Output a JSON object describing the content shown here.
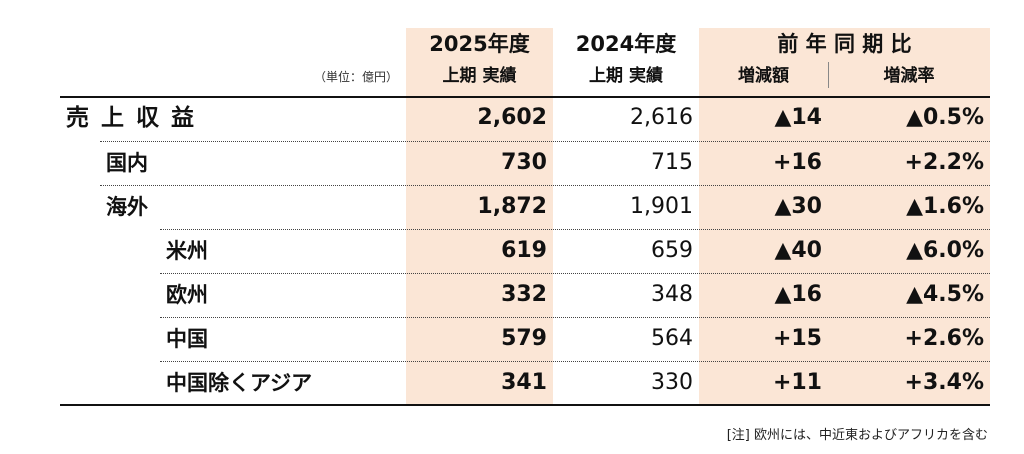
{
  "colors": {
    "highlight": "#fbe6d6",
    "text": "#111111",
    "rule": "#111111"
  },
  "header": {
    "unit": "（単位：億円）",
    "col_2025_year": "2025年度",
    "col_2025_sub": "上期 実績",
    "col_2024_year": "2024年度",
    "col_2024_sub": "上期 実績",
    "yoy_title": "前 年 同 期 比",
    "yoy_diff": "増減額",
    "yoy_rate": "増減率"
  },
  "rows": [
    {
      "label": "売 上 収 益",
      "v2025": "2,602",
      "v2024": "2,616",
      "diff": "▲14",
      "rate": "▲0.5%"
    },
    {
      "label": "国内",
      "v2025": "730",
      "v2024": "715",
      "diff": "+16",
      "rate": "+2.2%"
    },
    {
      "label": "海外",
      "v2025": "1,872",
      "v2024": "1,901",
      "diff": "▲30",
      "rate": "▲1.6%"
    },
    {
      "label": "米州",
      "v2025": "619",
      "v2024": "659",
      "diff": "▲40",
      "rate": "▲6.0%"
    },
    {
      "label": "欧州",
      "v2025": "332",
      "v2024": "348",
      "diff": "▲16",
      "rate": "▲4.5%"
    },
    {
      "label": "中国",
      "v2025": "579",
      "v2024": "564",
      "diff": "+15",
      "rate": "+2.6%"
    },
    {
      "label": "中国除くアジア",
      "v2025": "341",
      "v2024": "330",
      "diff": "+11",
      "rate": "+3.4%"
    }
  ],
  "note": "[注] 欧州には、中近東およびアフリカを含む"
}
